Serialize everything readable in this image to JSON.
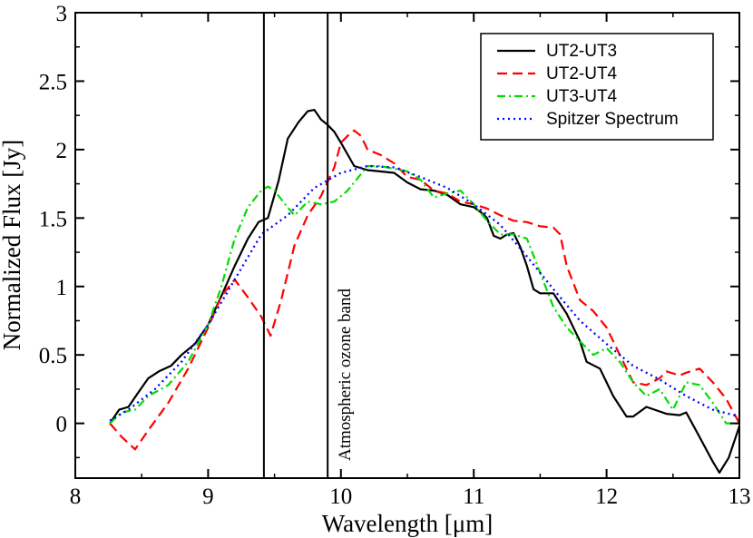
{
  "chart_data": {
    "type": "line",
    "title": "",
    "xlabel": "Wavelength [μm]",
    "ylabel": "Normalized Flux [Jy]",
    "xlim": [
      8,
      13
    ],
    "ylim": [
      -0.4,
      3
    ],
    "xticks": [
      8,
      9,
      10,
      11,
      12,
      13
    ],
    "xtick_labels": [
      "8",
      "9",
      "10",
      "11",
      "12",
      "13"
    ],
    "yticks": [
      0,
      0.5,
      1,
      1.5,
      2,
      2.5,
      3
    ],
    "ytick_labels": [
      "0",
      "0.5",
      "1",
      "1.5",
      "2",
      "2.5",
      "3"
    ],
    "grid": false,
    "legend_position": "top-right",
    "annotation": {
      "text": "Atmospheric ozone band",
      "band": [
        9.42,
        9.9
      ]
    },
    "series": [
      {
        "name": "UT2-UT3",
        "color": "#000000",
        "dash": "solid",
        "x": [
          8.26,
          8.33,
          8.4,
          8.47,
          8.55,
          8.63,
          8.72,
          8.8,
          8.9,
          9.0,
          9.1,
          9.2,
          9.3,
          9.38,
          9.45,
          9.53,
          9.6,
          9.68,
          9.75,
          9.8,
          9.85,
          9.9,
          9.95,
          10.0,
          10.1,
          10.2,
          10.3,
          10.4,
          10.5,
          10.6,
          10.7,
          10.8,
          10.9,
          11.0,
          11.07,
          11.1,
          11.15,
          11.2,
          11.25,
          11.3,
          11.35,
          11.4,
          11.45,
          11.5,
          11.6,
          11.7,
          11.8,
          11.85,
          11.95,
          12.05,
          12.15,
          12.2,
          12.3,
          12.45,
          12.55,
          12.6,
          12.7,
          12.8,
          12.85,
          12.92,
          13.0
        ],
        "y": [
          0.0,
          0.1,
          0.12,
          0.22,
          0.33,
          0.38,
          0.42,
          0.5,
          0.58,
          0.72,
          0.93,
          1.15,
          1.35,
          1.47,
          1.5,
          1.77,
          2.08,
          2.2,
          2.28,
          2.29,
          2.22,
          2.18,
          2.13,
          2.05,
          1.88,
          1.85,
          1.84,
          1.83,
          1.76,
          1.71,
          1.7,
          1.67,
          1.6,
          1.58,
          1.53,
          1.5,
          1.37,
          1.35,
          1.38,
          1.39,
          1.29,
          1.15,
          0.98,
          0.95,
          0.95,
          0.8,
          0.6,
          0.45,
          0.4,
          0.2,
          0.05,
          0.05,
          0.12,
          0.07,
          0.06,
          0.08,
          -0.1,
          -0.28,
          -0.36,
          -0.25,
          -0.02
        ]
      },
      {
        "name": "UT2-UT4",
        "color": "#ff0000",
        "dash": "dashed",
        "x": [
          8.26,
          8.35,
          8.45,
          8.55,
          8.7,
          8.85,
          9.0,
          9.1,
          9.2,
          9.3,
          9.4,
          9.47,
          9.55,
          9.65,
          9.75,
          9.85,
          9.95,
          10.0,
          10.05,
          10.1,
          10.15,
          10.2,
          10.3,
          10.4,
          10.5,
          10.6,
          10.7,
          10.8,
          10.9,
          11.0,
          11.1,
          11.2,
          11.3,
          11.4,
          11.5,
          11.6,
          11.65,
          11.7,
          11.8,
          11.9,
          12.0,
          12.1,
          12.2,
          12.3,
          12.4,
          12.45,
          12.55,
          12.6,
          12.7,
          12.8,
          12.9,
          13.0
        ],
        "y": [
          0.0,
          -0.1,
          -0.19,
          -0.05,
          0.15,
          0.4,
          0.7,
          0.93,
          1.05,
          0.92,
          0.78,
          0.64,
          0.9,
          1.3,
          1.52,
          1.66,
          1.87,
          2.05,
          2.1,
          2.14,
          2.1,
          2.0,
          1.96,
          1.9,
          1.8,
          1.78,
          1.7,
          1.68,
          1.62,
          1.6,
          1.57,
          1.52,
          1.48,
          1.47,
          1.44,
          1.43,
          1.38,
          1.15,
          0.9,
          0.82,
          0.7,
          0.5,
          0.3,
          0.28,
          0.33,
          0.38,
          0.35,
          0.37,
          0.4,
          0.3,
          0.18,
          0.0
        ]
      },
      {
        "name": "UT3-UT4",
        "color": "#00dd00",
        "dash": "dashdot",
        "x": [
          8.26,
          8.35,
          8.45,
          8.55,
          8.7,
          8.85,
          9.0,
          9.1,
          9.2,
          9.3,
          9.4,
          9.45,
          9.5,
          9.58,
          9.65,
          9.75,
          9.85,
          9.95,
          10.05,
          10.15,
          10.2,
          10.3,
          10.4,
          10.5,
          10.6,
          10.7,
          10.8,
          10.9,
          11.0,
          11.1,
          11.2,
          11.3,
          11.4,
          11.5,
          11.6,
          11.7,
          11.8,
          11.9,
          12.0,
          12.1,
          12.2,
          12.3,
          12.4,
          12.5,
          12.6,
          12.7,
          12.8,
          12.9,
          13.0
        ],
        "y": [
          0.0,
          0.08,
          0.1,
          0.2,
          0.28,
          0.45,
          0.72,
          1.0,
          1.35,
          1.58,
          1.7,
          1.73,
          1.7,
          1.6,
          1.52,
          1.62,
          1.6,
          1.62,
          1.7,
          1.82,
          1.88,
          1.88,
          1.86,
          1.84,
          1.78,
          1.65,
          1.68,
          1.7,
          1.6,
          1.48,
          1.38,
          1.38,
          1.35,
          1.1,
          0.85,
          0.7,
          0.6,
          0.5,
          0.55,
          0.45,
          0.3,
          0.2,
          0.25,
          0.1,
          0.3,
          0.28,
          0.15,
          0.0,
          0.0
        ]
      },
      {
        "name": "Spitzer Spectrum",
        "color": "#0000ff",
        "dash": "dotted",
        "x": [
          8.26,
          8.4,
          8.6,
          8.8,
          9.0,
          9.2,
          9.4,
          9.6,
          9.8,
          10.0,
          10.2,
          10.4,
          10.6,
          10.8,
          11.0,
          11.2,
          11.4,
          11.6,
          11.8,
          12.0,
          12.2,
          12.4,
          12.6,
          12.8,
          13.0
        ],
        "y": [
          0.02,
          0.1,
          0.25,
          0.45,
          0.72,
          1.05,
          1.38,
          1.52,
          1.72,
          1.83,
          1.88,
          1.87,
          1.8,
          1.72,
          1.6,
          1.45,
          1.22,
          0.98,
          0.75,
          0.58,
          0.42,
          0.32,
          0.2,
          0.1,
          0.05
        ]
      }
    ]
  }
}
